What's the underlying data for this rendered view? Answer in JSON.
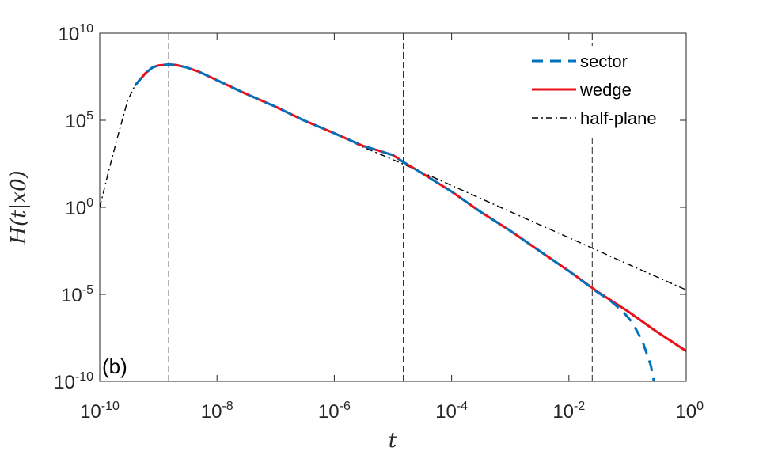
{
  "chart_data": {
    "type": "line",
    "xscale": "log",
    "yscale": "log",
    "xlim": [
      1e-10,
      1
    ],
    "ylim": [
      1e-10,
      10000000000.0
    ],
    "xlabel": "t",
    "ylabel": "H(t|x0)",
    "x_ticks": [
      {
        "base": "10",
        "exp": "-10",
        "value": 1e-10
      },
      {
        "base": "10",
        "exp": "-8",
        "value": 1e-08
      },
      {
        "base": "10",
        "exp": "-6",
        "value": 1e-06
      },
      {
        "base": "10",
        "exp": "-4",
        "value": 0.0001
      },
      {
        "base": "10",
        "exp": "-2",
        "value": 0.01
      },
      {
        "base": "10",
        "exp": "0",
        "value": 1
      }
    ],
    "y_ticks": [
      {
        "base": "10",
        "exp": "-10",
        "value": 1e-10
      },
      {
        "base": "10",
        "exp": "-5",
        "value": 1e-05
      },
      {
        "base": "10",
        "exp": "0",
        "value": 1
      },
      {
        "base": "10",
        "exp": "5",
        "value": 100000.0
      },
      {
        "base": "10",
        "exp": "10",
        "value": 10000000000.0
      }
    ],
    "panel_label": "(b)",
    "legend_position": "top-right",
    "grid": false,
    "vlines": [
      1.5e-09,
      1.5e-05,
      0.025
    ],
    "series": [
      {
        "name": "half-plane",
        "color": "#000000",
        "style": "dashdot",
        "x": [
          1e-10,
          1.4e-10,
          2e-10,
          3e-10,
          4e-10,
          6e-10,
          8e-10,
          1e-09,
          1.5e-09,
          2e-09,
          3e-09,
          5e-09,
          1e-08,
          3e-08,
          1e-07,
          3e-07,
          1e-06,
          3e-06,
          1e-05,
          3e-05,
          0.0001,
          0.001,
          0.01,
          0.1,
          1
        ],
        "y": [
          1,
          100.0,
          10000.0,
          1400000.0,
          10000000.0,
          50000000.0,
          110000000.0,
          140000000.0,
          160000000.0,
          150000000.0,
          110000000.0,
          60000000.0,
          20000000.0,
          3500000.0,
          600000.0,
          100000.0,
          18000.0,
          3000.0,
          550.0,
          110.0,
          18.0,
          0.56,
          0.018,
          0.00056,
          1.8e-05
        ]
      },
      {
        "name": "wedge",
        "color": "#e8111a",
        "style": "solid",
        "x": [
          4e-10,
          6e-10,
          8e-10,
          1e-09,
          1.5e-09,
          2e-09,
          3e-09,
          5e-09,
          1e-08,
          3e-08,
          1e-07,
          3e-07,
          1e-06,
          3e-06,
          1e-05,
          1.5e-05,
          3e-05,
          0.0001,
          0.0003,
          0.001,
          0.003,
          0.01,
          0.03,
          0.1,
          0.3,
          1
        ],
        "y": [
          10000000.0,
          50000000.0,
          110000000.0,
          140000000.0,
          160000000.0,
          150000000.0,
          110000000.0,
          60000000.0,
          20000000.0,
          3500000.0,
          600000.0,
          100000.0,
          18000.0,
          3500.0,
          1000.0,
          400.0,
          100.0,
          8,
          0.6,
          0.045,
          0.0035,
          0.00022,
          1.5e-05,
          1.1e-06,
          8e-08,
          5.5e-09
        ]
      },
      {
        "name": "sector",
        "color": "#0072bd",
        "style": "dashed",
        "x": [
          4e-10,
          6e-10,
          8e-10,
          1e-09,
          1.5e-09,
          2e-09,
          3e-09,
          5e-09,
          1e-08,
          3e-08,
          1e-07,
          3e-07,
          1e-06,
          3e-06,
          1e-05,
          1.5e-05,
          3e-05,
          0.0001,
          0.0003,
          0.001,
          0.003,
          0.01,
          0.03,
          0.05,
          0.08,
          0.12,
          0.18,
          0.25,
          0.32
        ],
        "y": [
          10000000.0,
          50000000.0,
          110000000.0,
          140000000.0,
          160000000.0,
          150000000.0,
          110000000.0,
          60000000.0,
          20000000.0,
          3500000.0,
          600000.0,
          100000.0,
          18000.0,
          3500.0,
          1000.0,
          400.0,
          100.0,
          8,
          0.6,
          0.045,
          0.0035,
          0.00022,
          1.4e-05,
          4.5e-06,
          1.2e-06,
          2.5e-07,
          2e-08,
          8e-10,
          1e-11
        ]
      }
    ]
  }
}
